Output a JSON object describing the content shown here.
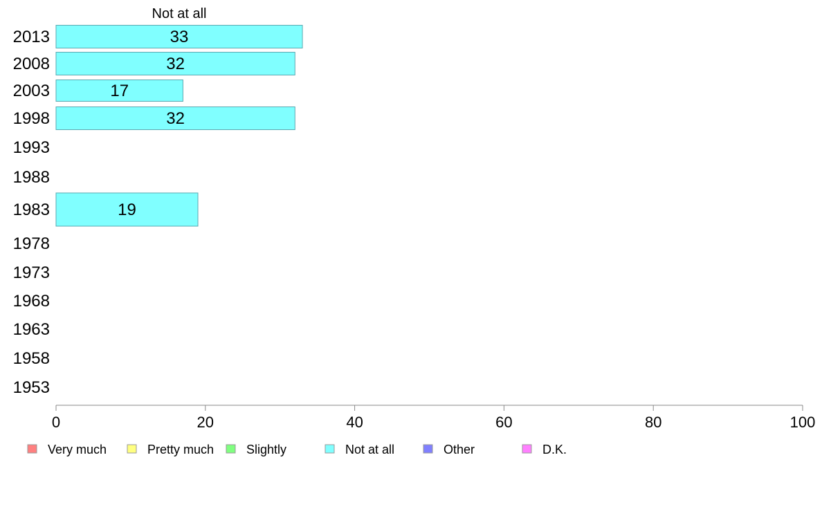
{
  "chart_data": {
    "type": "bar",
    "orientation": "horizontal",
    "title": "Not at all",
    "categories": [
      "2013",
      "2008",
      "2003",
      "1998",
      "1993",
      "1988",
      "1983",
      "1978",
      "1973",
      "1968",
      "1963",
      "1958",
      "1953"
    ],
    "series": [
      {
        "name": "Not at all",
        "color": "#80ffff",
        "values": [
          33,
          32,
          17,
          32,
          null,
          null,
          19,
          null,
          null,
          null,
          null,
          null,
          null
        ]
      }
    ],
    "xlim": [
      0,
      100
    ],
    "xticks": [
      0,
      20,
      40,
      60,
      80,
      100
    ],
    "grid": false,
    "legend_position": "bottom",
    "legend": [
      {
        "label": "Very much",
        "color": "#ff8080"
      },
      {
        "label": "Pretty much",
        "color": "#ffff80"
      },
      {
        "label": "Slightly",
        "color": "#80ff80"
      },
      {
        "label": "Not at all",
        "color": "#80ffff"
      },
      {
        "label": "Other",
        "color": "#8080ff"
      },
      {
        "label": "D.K.",
        "color": "#ff80ff"
      }
    ]
  }
}
